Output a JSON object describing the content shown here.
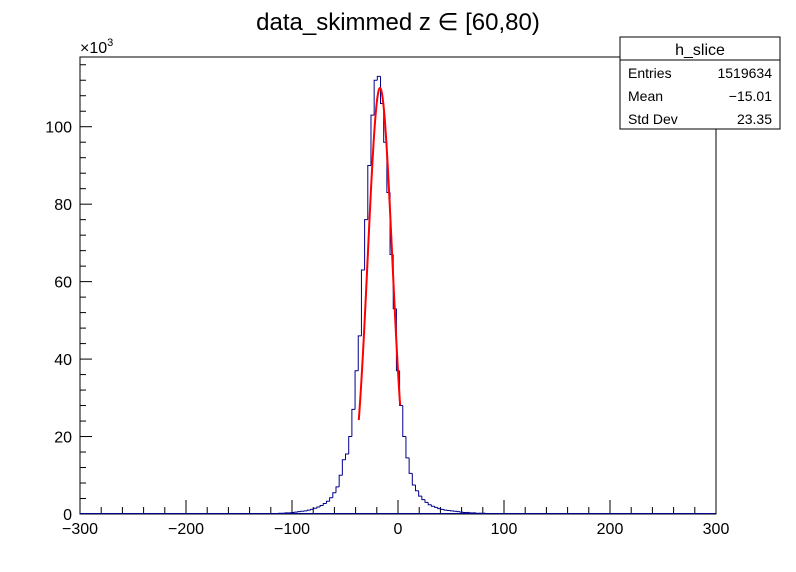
{
  "chart_data": {
    "type": "histogram",
    "title": "data_skimmed z  ∈ [60,80)",
    "xlabel": "",
    "ylabel": "",
    "y_multiplier_label": "×10",
    "y_multiplier_exponent": "3",
    "xlim": [
      -300,
      300
    ],
    "ylim": [
      0,
      118
    ],
    "y_units": "x10^3 entries",
    "x_ticks": [
      -300,
      -200,
      -100,
      0,
      100,
      200,
      300
    ],
    "x_tick_labels": [
      "−300",
      "−200",
      "−100",
      "0",
      "100",
      "200",
      "300"
    ],
    "y_ticks": [
      0,
      20,
      40,
      60,
      80,
      100
    ],
    "y_tick_labels": [
      "0",
      "20",
      "40",
      "60",
      "80",
      "100"
    ],
    "grid": false,
    "colors": {
      "histogram": "#00008b",
      "fit": "#ff0000",
      "axis": "#000000"
    },
    "series": [
      {
        "kind": "histogram",
        "bin_width": 3,
        "bins": [
          {
            "x": -117,
            "y": 0.1
          },
          {
            "x": -114,
            "y": 0.1
          },
          {
            "x": -111,
            "y": 0.2
          },
          {
            "x": -108,
            "y": 0.2
          },
          {
            "x": -105,
            "y": 0.3
          },
          {
            "x": -102,
            "y": 0.3
          },
          {
            "x": -99,
            "y": 0.4
          },
          {
            "x": -96,
            "y": 0.5
          },
          {
            "x": -93,
            "y": 0.6
          },
          {
            "x": -90,
            "y": 0.7
          },
          {
            "x": -87,
            "y": 0.8
          },
          {
            "x": -84,
            "y": 1.0
          },
          {
            "x": -81,
            "y": 1.2
          },
          {
            "x": -78,
            "y": 1.5
          },
          {
            "x": -75,
            "y": 1.8
          },
          {
            "x": -72,
            "y": 2.2
          },
          {
            "x": -69,
            "y": 2.7
          },
          {
            "x": -66,
            "y": 3.3
          },
          {
            "x": -63,
            "y": 4.2
          },
          {
            "x": -60,
            "y": 5.5
          },
          {
            "x": -57,
            "y": 7.0
          },
          {
            "x": -54,
            "y": 10.0
          },
          {
            "x": -51,
            "y": 14.0
          },
          {
            "x": -48,
            "y": 15.5
          },
          {
            "x": -45,
            "y": 20.0
          },
          {
            "x": -42,
            "y": 27.0
          },
          {
            "x": -39,
            "y": 37.0
          },
          {
            "x": -36,
            "y": 46.0
          },
          {
            "x": -33,
            "y": 63.0
          },
          {
            "x": -30,
            "y": 76.0
          },
          {
            "x": -27,
            "y": 90.0
          },
          {
            "x": -24,
            "y": 103.0
          },
          {
            "x": -21,
            "y": 112.0
          },
          {
            "x": -18,
            "y": 113.0
          },
          {
            "x": -15,
            "y": 106.0
          },
          {
            "x": -12,
            "y": 96.0
          },
          {
            "x": -9,
            "y": 83.0
          },
          {
            "x": -6,
            "y": 67.0
          },
          {
            "x": -3,
            "y": 53.0
          },
          {
            "x": 0,
            "y": 37.0
          },
          {
            "x": 3,
            "y": 28.0
          },
          {
            "x": 6,
            "y": 20.0
          },
          {
            "x": 9,
            "y": 14.5
          },
          {
            "x": 12,
            "y": 10.5
          },
          {
            "x": 15,
            "y": 7.5
          },
          {
            "x": 18,
            "y": 6.0
          },
          {
            "x": 21,
            "y": 4.6
          },
          {
            "x": 24,
            "y": 3.7
          },
          {
            "x": 27,
            "y": 3.0
          },
          {
            "x": 30,
            "y": 2.4
          },
          {
            "x": 33,
            "y": 2.0
          },
          {
            "x": 36,
            "y": 1.7
          },
          {
            "x": 39,
            "y": 1.4
          },
          {
            "x": 42,
            "y": 1.2
          },
          {
            "x": 45,
            "y": 1.0
          },
          {
            "x": 48,
            "y": 0.9
          },
          {
            "x": 51,
            "y": 0.8
          },
          {
            "x": 54,
            "y": 0.7
          },
          {
            "x": 57,
            "y": 0.6
          },
          {
            "x": 60,
            "y": 0.5
          },
          {
            "x": 63,
            "y": 0.4
          },
          {
            "x": 66,
            "y": 0.4
          },
          {
            "x": 69,
            "y": 0.3
          },
          {
            "x": 72,
            "y": 0.3
          },
          {
            "x": 75,
            "y": 0.2
          },
          {
            "x": 78,
            "y": 0.2
          },
          {
            "x": 81,
            "y": 0.2
          },
          {
            "x": 84,
            "y": 0.1
          },
          {
            "x": 87,
            "y": 0.1
          },
          {
            "x": 90,
            "y": 0.1
          }
        ]
      },
      {
        "kind": "fit",
        "function": "gaussian",
        "amplitude": 110,
        "mean": -17,
        "sigma": 11.5,
        "range": [
          -37,
          2
        ]
      }
    ],
    "stats_box": {
      "title": "h_slice",
      "rows": [
        {
          "label": "Entries",
          "value": "1519634"
        },
        {
          "label": "Mean",
          "value": "−15.01"
        },
        {
          "label": "Std Dev",
          "value": "23.35"
        }
      ]
    }
  }
}
